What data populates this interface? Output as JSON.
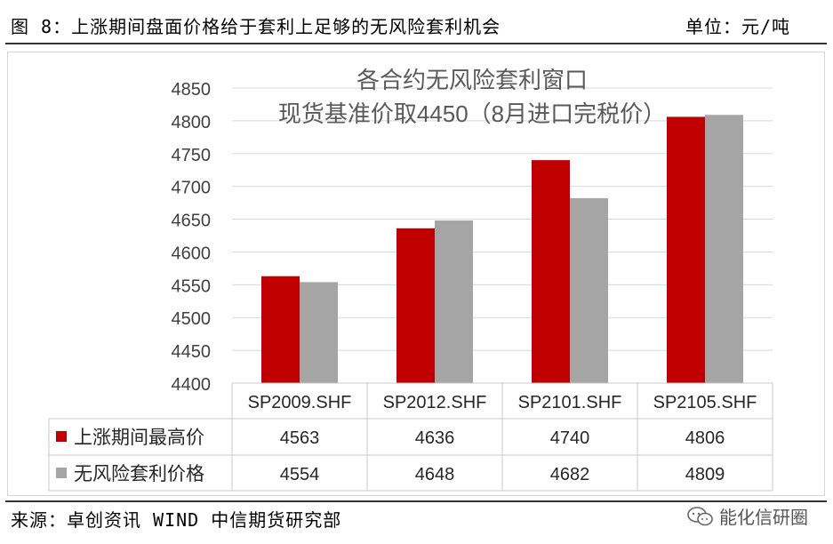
{
  "header": {
    "figure_title": "图 8：上涨期间盘面价格给于套利上足够的无风险套利机会",
    "unit": "单位：元/吨"
  },
  "footer": {
    "source": "来源：卓创资讯 WIND 中信期货研究部",
    "watermark": "能化信研圈",
    "watermark_icon": "chat-bubble-icon"
  },
  "chart_data": {
    "type": "bar",
    "annotation_line1": "各合约无风险套利窗口",
    "annotation_line2": "现货基准价取4450（8月进口完税价）",
    "categories": [
      "SP2009.SHF",
      "SP2012.SHF",
      "SP2101.SHF",
      "SP2105.SHF"
    ],
    "series": [
      {
        "name": "上涨期间最高价",
        "values": [
          4563,
          4636,
          4740,
          4806
        ],
        "color": "#C00000"
      },
      {
        "name": "无风险套利价格",
        "values": [
          4554,
          4648,
          4682,
          4809
        ],
        "color": "#A5A5A5"
      }
    ],
    "y_ticks": [
      4400,
      4450,
      4500,
      4550,
      4600,
      4650,
      4700,
      4750,
      4800,
      4850
    ],
    "ylim": [
      4400,
      4850
    ],
    "grid": true,
    "legend": "data-table"
  }
}
